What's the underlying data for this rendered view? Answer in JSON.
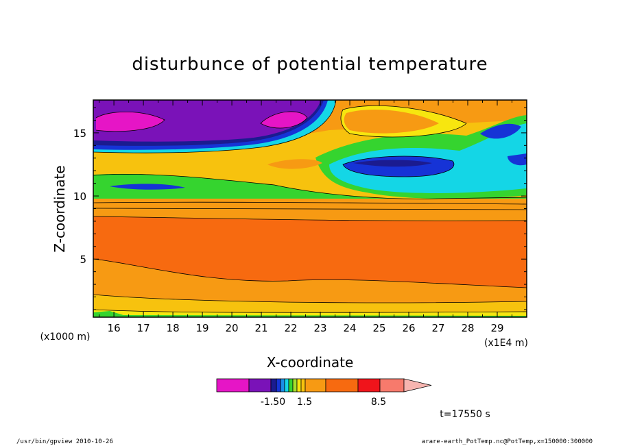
{
  "chart_data": {
    "type": "heatmap",
    "title": "disturbunce of potential temperature",
    "xlabel": "X-coordinate",
    "ylabel": "Z-coordinate",
    "x_unit_note": "(x1E4 m)",
    "y_unit_note": "(x1000 m)",
    "xlim": [
      15.3,
      30.0
    ],
    "ylim": [
      0.4,
      17.6
    ],
    "x_ticks": [
      "16",
      "17",
      "18",
      "19",
      "20",
      "21",
      "22",
      "23",
      "24",
      "25",
      "26",
      "27",
      "28",
      "29"
    ],
    "y_ticks": [
      "5",
      "10",
      "15"
    ],
    "colorbar": {
      "labels": [
        "-1.50",
        "1.5",
        "8.5"
      ],
      "colors": [
        "#e615c6",
        "#7a12b8",
        "#1b1b90",
        "#1633d6",
        "#1a8fe6",
        "#14d6e6",
        "#35d42f",
        "#a6e02c",
        "#f7e60f",
        "#f7c20e",
        "#f79a13",
        "#f76a10",
        "#f0141b",
        "#f77a6c",
        "#f7b5b0"
      ]
    },
    "time_label": "t=17550 s",
    "regions": [
      {
        "name": "strong-negative",
        "description_x": [
          15.4,
          19.0
        ],
        "z": [
          15.3,
          16.8
        ]
      },
      {
        "name": "strong-negative",
        "description_x": [
          21.0,
          22.2
        ],
        "z": [
          15.3,
          16.5
        ]
      },
      {
        "name": "deep-orange-band",
        "description_x": [
          15.3,
          30.0
        ],
        "z": [
          2.6,
          8.0
        ]
      },
      {
        "name": "orange-core",
        "description_x": [
          23.0,
          26.8
        ],
        "z": [
          14.2,
          16.8
        ]
      },
      {
        "name": "blue-core",
        "description_x": [
          24.2,
          27.0
        ],
        "z": [
          11.4,
          13.3
        ]
      }
    ]
  },
  "footer": {
    "left": "/usr/bin/gpview  2010-10-26",
    "right": "arare-earth_PotTemp.nc@PotTemp,x=150000:300000"
  },
  "colors": {
    "magenta": "#e615c6",
    "purple": "#7a12b8",
    "navy": "#1b1b90",
    "blue": "#1633d6",
    "cyan": "#14d6e6",
    "green": "#35d42f",
    "yellow": "#f7e60f",
    "orange": "#f79a13",
    "deep_orange": "#f76a10",
    "red": "#f0141b",
    "salmon": "#f77a6c",
    "pink": "#f7b5b0"
  }
}
